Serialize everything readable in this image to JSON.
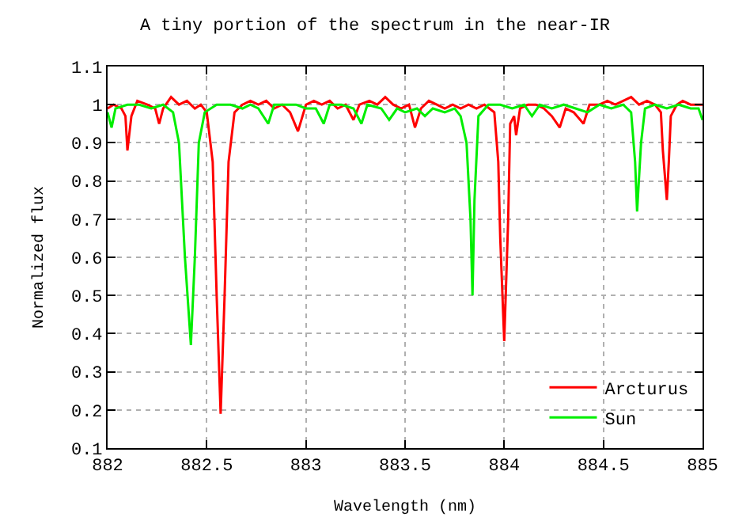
{
  "chart_data": {
    "type": "line",
    "title": "A tiny portion of the spectrum in the near-IR",
    "xlabel": "Wavelength (nm)",
    "ylabel": "Normalized flux",
    "xlim": [
      882,
      885
    ],
    "xticks": [
      882,
      882.5,
      883,
      883.5,
      884,
      884.5,
      885
    ],
    "ylim": [
      0.1,
      1.1
    ],
    "yticks": [
      0.1,
      0.2,
      0.3,
      0.4,
      0.5,
      0.6,
      0.7,
      0.8,
      0.9,
      1,
      1.1
    ],
    "grid": true,
    "legend": "bottom right",
    "marker": "none",
    "line_style": "solid",
    "series": [
      {
        "name": "Arcturus",
        "color": "#ff0000",
        "x": [
          882.0,
          882.03,
          882.07,
          882.09,
          882.1,
          882.12,
          882.15,
          882.2,
          882.24,
          882.26,
          882.28,
          882.32,
          882.36,
          882.4,
          882.44,
          882.47,
          882.5,
          882.53,
          882.55,
          882.57,
          882.59,
          882.61,
          882.64,
          882.68,
          882.72,
          882.76,
          882.8,
          882.84,
          882.88,
          882.92,
          882.96,
          883.0,
          883.04,
          883.08,
          883.12,
          883.16,
          883.2,
          883.24,
          883.27,
          883.32,
          883.36,
          883.4,
          883.44,
          883.48,
          883.52,
          883.55,
          883.58,
          883.62,
          883.66,
          883.7,
          883.74,
          883.78,
          883.82,
          883.86,
          883.9,
          883.95,
          883.97,
          883.98,
          884.0,
          884.02,
          884.03,
          884.05,
          884.06,
          884.08,
          884.12,
          884.16,
          884.2,
          884.24,
          884.28,
          884.31,
          884.35,
          884.4,
          884.43,
          884.48,
          884.52,
          884.56,
          884.6,
          884.64,
          884.68,
          884.72,
          884.76,
          884.79,
          884.8,
          884.82,
          884.83,
          884.84,
          884.87,
          884.9,
          884.94,
          884.97,
          885.0
        ],
        "values": [
          0.99,
          1.0,
          0.99,
          0.97,
          0.88,
          0.97,
          1.01,
          1.0,
          0.99,
          0.95,
          0.99,
          1.02,
          1.0,
          1.01,
          0.99,
          1.0,
          0.98,
          0.85,
          0.5,
          0.19,
          0.5,
          0.85,
          0.98,
          1.0,
          1.01,
          1.0,
          1.01,
          0.99,
          1.0,
          0.98,
          0.93,
          1.0,
          1.01,
          1.0,
          1.01,
          0.99,
          1.0,
          0.96,
          1.0,
          1.01,
          1.0,
          1.02,
          1.0,
          0.99,
          1.0,
          0.94,
          0.99,
          1.01,
          1.0,
          0.99,
          1.0,
          0.99,
          1.0,
          0.99,
          1.0,
          0.98,
          0.85,
          0.65,
          0.38,
          0.7,
          0.95,
          0.97,
          0.92,
          0.99,
          1.0,
          1.0,
          0.99,
          0.97,
          0.94,
          0.99,
          0.98,
          0.95,
          1.0,
          1.0,
          1.01,
          1.0,
          1.01,
          1.02,
          1.0,
          1.01,
          1.0,
          0.98,
          0.88,
          0.75,
          0.85,
          0.97,
          1.0,
          1.01,
          1.0,
          1.0,
          1.0
        ]
      },
      {
        "name": "Sun",
        "color": "#00ee00",
        "x": [
          882.0,
          882.02,
          882.04,
          882.1,
          882.16,
          882.22,
          882.28,
          882.33,
          882.36,
          882.39,
          882.42,
          882.44,
          882.46,
          882.49,
          882.55,
          882.62,
          882.68,
          882.72,
          882.76,
          882.81,
          882.84,
          882.9,
          882.95,
          883.0,
          883.05,
          883.09,
          883.12,
          883.18,
          883.24,
          883.28,
          883.31,
          883.38,
          883.42,
          883.46,
          883.5,
          883.56,
          883.6,
          883.64,
          883.7,
          883.75,
          883.78,
          883.81,
          883.83,
          883.84,
          883.85,
          883.87,
          883.92,
          883.98,
          884.04,
          884.1,
          884.14,
          884.18,
          884.24,
          884.3,
          884.36,
          884.42,
          884.48,
          884.54,
          884.6,
          884.64,
          884.66,
          884.67,
          884.69,
          884.71,
          884.76,
          884.82,
          884.88,
          884.94,
          884.98,
          885.0
        ],
        "values": [
          0.98,
          0.94,
          0.99,
          1.0,
          1.0,
          0.99,
          1.0,
          0.98,
          0.9,
          0.6,
          0.37,
          0.6,
          0.9,
          0.98,
          1.0,
          1.0,
          0.99,
          1.0,
          0.99,
          0.95,
          1.0,
          1.0,
          1.0,
          0.99,
          0.99,
          0.95,
          1.0,
          1.0,
          0.99,
          0.95,
          1.0,
          0.99,
          0.96,
          0.99,
          0.98,
          0.99,
          0.97,
          0.99,
          0.98,
          0.99,
          0.97,
          0.9,
          0.7,
          0.5,
          0.75,
          0.97,
          1.0,
          1.0,
          0.99,
          1.0,
          0.97,
          1.0,
          0.99,
          1.0,
          0.99,
          0.98,
          1.0,
          0.99,
          1.0,
          0.98,
          0.85,
          0.72,
          0.9,
          0.99,
          1.0,
          0.99,
          1.0,
          0.99,
          0.99,
          0.96
        ]
      }
    ]
  }
}
